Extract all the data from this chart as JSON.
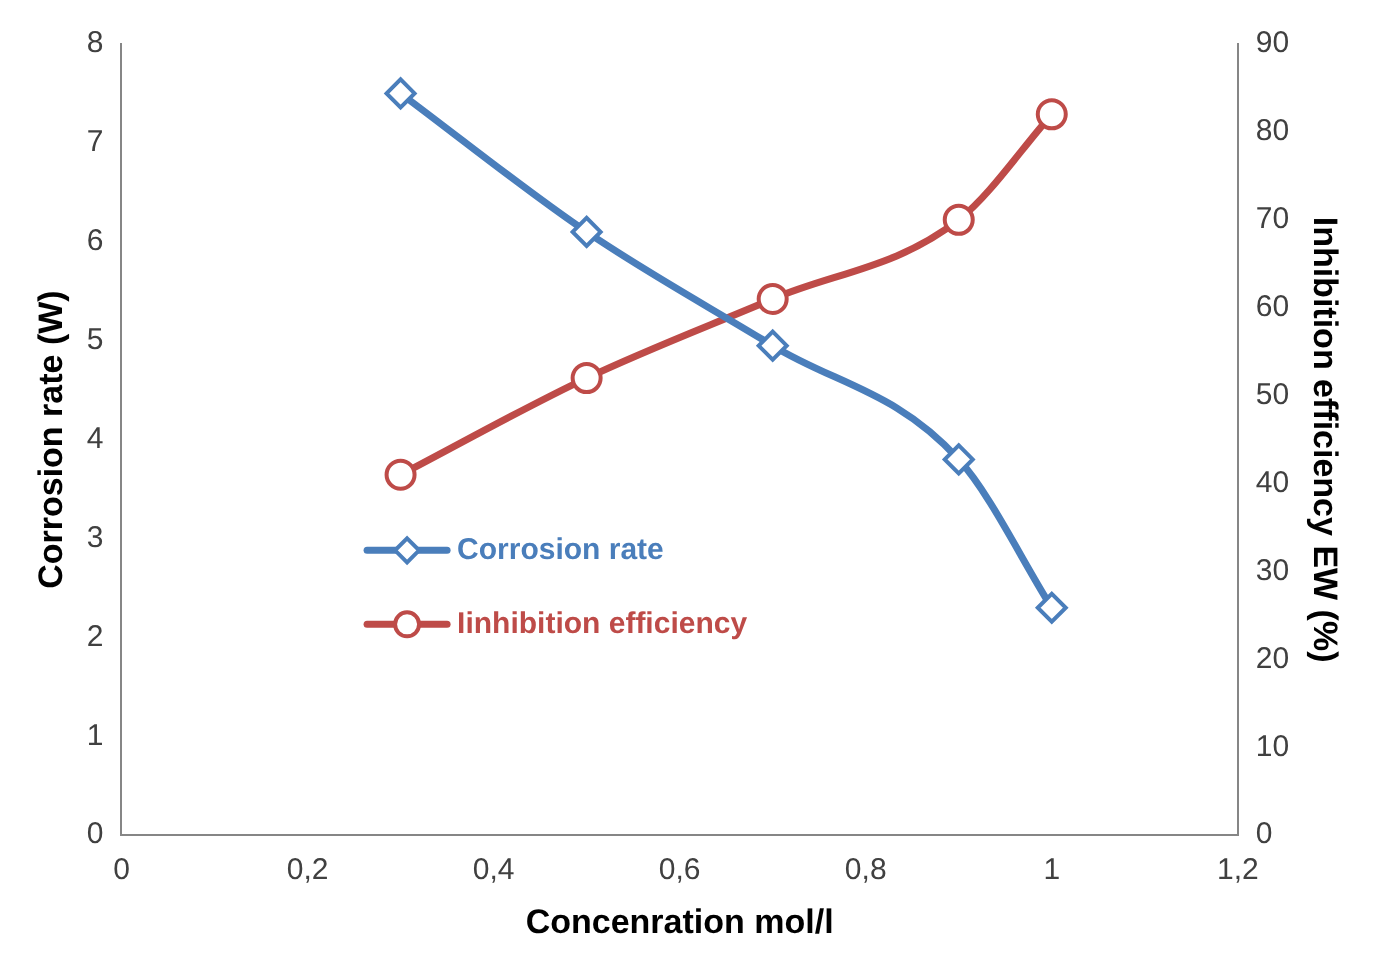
{
  "chart_data": {
    "type": "line",
    "xlabel": "Concenration mol/l",
    "ylabel": "Corrosion rate (W)",
    "y2label": "Inhibition efficiency EW (%)",
    "x": [
      0.3,
      0.5,
      0.7,
      0.9,
      1
    ],
    "series": [
      {
        "name": "Corrosion rate",
        "color": "#4a7ebb",
        "marker": "diamond",
        "values": [
          7.5,
          6.1,
          4.95,
          3.8,
          2.3
        ]
      },
      {
        "name": "Iinhibition efficiency",
        "color": "#be4b48",
        "marker": "circle",
        "axis": "y2",
        "values": [
          41,
          52,
          61,
          70,
          82
        ]
      }
    ],
    "xlim": [
      0,
      1.2
    ],
    "xticks": [
      {
        "value": 0,
        "label": "0"
      },
      {
        "value": 0.2,
        "label": "0,2"
      },
      {
        "value": 0.4,
        "label": "0,4"
      },
      {
        "value": 0.6,
        "label": "0,6"
      },
      {
        "value": 0.8,
        "label": "0,8"
      },
      {
        "value": 1,
        "label": "1"
      },
      {
        "value": 1.2,
        "label": "1,2"
      }
    ],
    "ylim": [
      0,
      8
    ],
    "yticks": [
      0,
      1,
      2,
      3,
      4,
      5,
      6,
      7,
      8
    ],
    "y2lim": [
      0,
      90
    ],
    "y2ticks": [
      0,
      10,
      20,
      30,
      40,
      50,
      60,
      70,
      80,
      90
    ],
    "grid": false,
    "legend": "center",
    "line_style": "solid"
  }
}
